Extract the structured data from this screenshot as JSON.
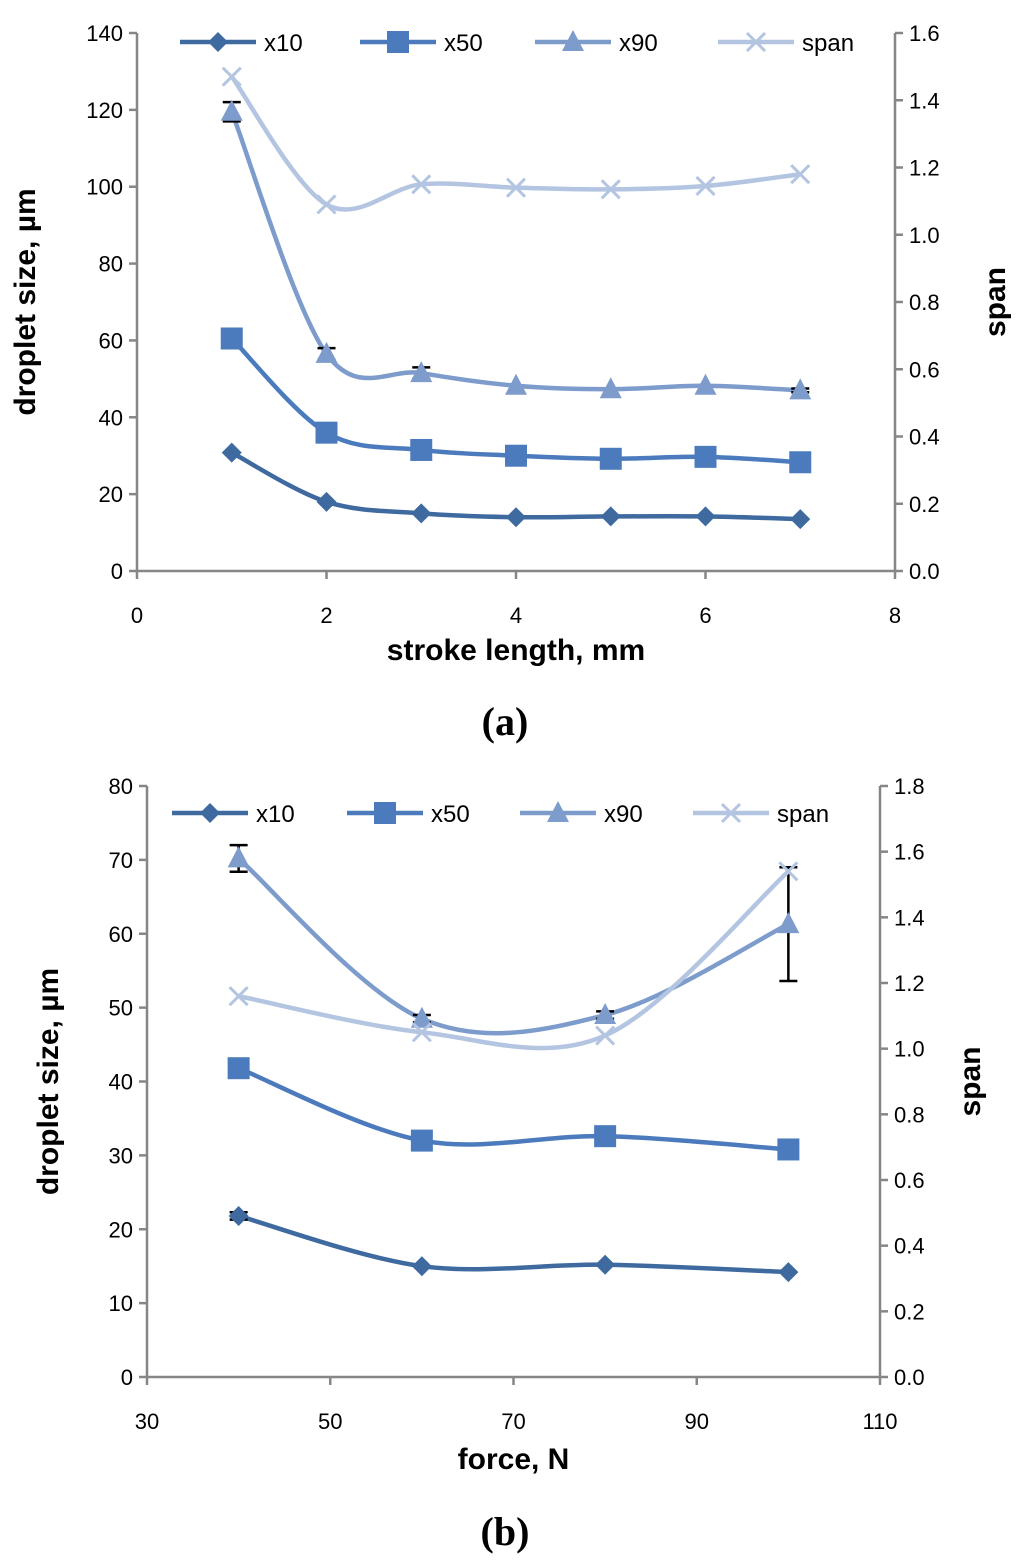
{
  "chart_data": [
    {
      "type": "line",
      "panel_label": "(a)",
      "xlabel": "stroke length, mm",
      "ylabel": "droplet size, µm",
      "y2label": "span",
      "xlim": [
        0,
        8
      ],
      "ylim": [
        0,
        140
      ],
      "y2lim": [
        0,
        1.6
      ],
      "x_ticks": [
        "0",
        "2",
        "4",
        "6",
        "8"
      ],
      "y_ticks": [
        "0",
        "20",
        "40",
        "60",
        "80",
        "100",
        "120",
        "140"
      ],
      "y2_ticks": [
        "0.0",
        "0.2",
        "0.4",
        "0.6",
        "0.8",
        "1.0",
        "1.2",
        "1.4",
        "1.6"
      ],
      "legend_position": "top",
      "x": [
        1,
        2,
        3,
        4,
        5,
        6,
        7
      ],
      "series": [
        {
          "name": "x10",
          "axis": "left",
          "marker": "diamond",
          "color": "#3e6aa0",
          "values": [
            30.8,
            18.0,
            15.0,
            14.0,
            14.2,
            14.2,
            13.5
          ]
        },
        {
          "name": "x50",
          "axis": "left",
          "marker": "square",
          "color": "#4b7bbd",
          "values": [
            60.5,
            36.0,
            31.5,
            30.0,
            29.2,
            29.7,
            28.3
          ]
        },
        {
          "name": "x90",
          "axis": "left",
          "marker": "triangle",
          "color": "#7d9ccc",
          "values": [
            119.5,
            56.5,
            51.5,
            48.2,
            47.3,
            48.2,
            47.0
          ],
          "error": [
            2.5,
            1.5,
            1.5,
            0,
            0,
            0,
            0.5
          ]
        },
        {
          "name": "span",
          "axis": "right",
          "marker": "x",
          "color": "#b3c5e1",
          "values": [
            1.47,
            1.09,
            1.15,
            1.14,
            1.135,
            1.145,
            1.18
          ]
        }
      ]
    },
    {
      "type": "line",
      "panel_label": "(b)",
      "xlabel": "force, N",
      "ylabel": "droplet size, µm",
      "y2label": "span",
      "xlim": [
        30,
        110
      ],
      "ylim": [
        0,
        80
      ],
      "y2lim": [
        0,
        1.8
      ],
      "x_ticks": [
        "30",
        "50",
        "70",
        "90",
        "110"
      ],
      "y_ticks": [
        "0",
        "10",
        "20",
        "30",
        "40",
        "50",
        "60",
        "70",
        "80"
      ],
      "y2_ticks": [
        "0.0",
        "0.2",
        "0.4",
        "0.6",
        "0.8",
        "1.0",
        "1.2",
        "1.4",
        "1.6",
        "1.8"
      ],
      "legend_position": "top",
      "x": [
        40,
        60,
        80,
        100
      ],
      "series": [
        {
          "name": "x10",
          "axis": "left",
          "marker": "diamond",
          "color": "#3e6aa0",
          "values": [
            21.8,
            15.0,
            15.2,
            14.2
          ],
          "error": [
            0.5,
            0,
            0,
            0
          ]
        },
        {
          "name": "x50",
          "axis": "left",
          "marker": "square",
          "color": "#4b7bbd",
          "values": [
            41.8,
            32.0,
            32.6,
            30.8
          ]
        },
        {
          "name": "x90",
          "axis": "left",
          "marker": "triangle",
          "color": "#7d9ccc",
          "values": [
            70.2,
            48.5,
            49.0,
            61.3
          ],
          "error": [
            1.8,
            0.5,
            0.5,
            7.7
          ]
        },
        {
          "name": "span",
          "axis": "right",
          "marker": "x",
          "color": "#b3c5e1",
          "values": [
            1.16,
            1.05,
            1.04,
            1.54
          ]
        }
      ]
    }
  ]
}
